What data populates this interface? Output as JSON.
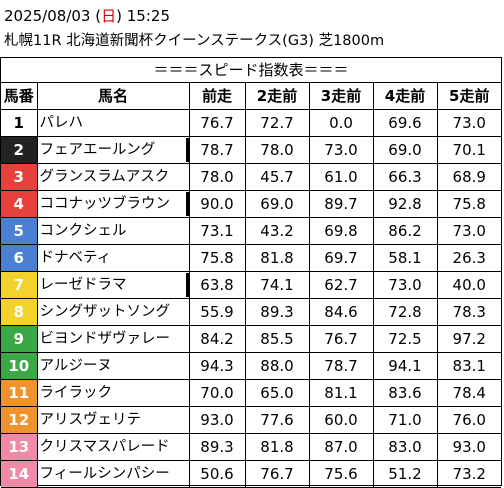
{
  "header": {
    "date": "2025/08/03",
    "weekday_open": "(",
    "weekday": "日",
    "weekday_close": ")",
    "time": "15:25",
    "race": "札幌11R 北海道新聞杯クイーンステークス(G3) 芝1800m"
  },
  "banner": "＝＝＝スピード指数表＝＝＝",
  "columns": [
    "馬番",
    "馬名",
    "前走",
    "2走前",
    "3走前",
    "4走前",
    "5走前"
  ],
  "horses": [
    {
      "no": "1",
      "name": "パレハ",
      "r1": "76.7",
      "r2": "72.7",
      "r3": "0.0",
      "r4": "69.6",
      "r5": "73.0",
      "bg": "#ffffff",
      "fg": "#000000",
      "mark": false
    },
    {
      "no": "2",
      "name": "フェアエールング",
      "r1": "78.7",
      "r2": "78.0",
      "r3": "73.0",
      "r4": "69.0",
      "r5": "70.1",
      "bg": "#222222",
      "fg": "#ffffff",
      "mark": true
    },
    {
      "no": "3",
      "name": "グランスラムアスク",
      "r1": "78.0",
      "r2": "45.7",
      "r3": "61.0",
      "r4": "66.3",
      "r5": "68.9",
      "bg": "#e8403b",
      "fg": "#ffffff",
      "mark": false
    },
    {
      "no": "4",
      "name": "ココナッツブラウン",
      "r1": "90.0",
      "r2": "69.0",
      "r3": "89.7",
      "r4": "92.8",
      "r5": "75.8",
      "bg": "#e8403b",
      "fg": "#ffffff",
      "mark": true
    },
    {
      "no": "5",
      "name": "コンクシェル",
      "r1": "73.1",
      "r2": "43.2",
      "r3": "69.8",
      "r4": "86.2",
      "r5": "73.0",
      "bg": "#4a7fd4",
      "fg": "#ffffff",
      "mark": false
    },
    {
      "no": "6",
      "name": "ドナベティ",
      "r1": "75.8",
      "r2": "81.8",
      "r3": "69.7",
      "r4": "58.1",
      "r5": "26.3",
      "bg": "#4a7fd4",
      "fg": "#ffffff",
      "mark": false
    },
    {
      "no": "7",
      "name": "レーゼドラマ",
      "r1": "63.8",
      "r2": "74.1",
      "r3": "62.7",
      "r4": "73.0",
      "r5": "40.0",
      "bg": "#f3d22b",
      "fg": "#ffffff",
      "mark": true
    },
    {
      "no": "8",
      "name": "シングザットソング",
      "r1": "55.9",
      "r2": "89.3",
      "r3": "84.6",
      "r4": "72.8",
      "r5": "78.3",
      "bg": "#f3d22b",
      "fg": "#ffffff",
      "mark": false
    },
    {
      "no": "9",
      "name": "ビヨンドザヴァレー",
      "r1": "84.2",
      "r2": "85.5",
      "r3": "76.7",
      "r4": "72.5",
      "r5": "97.2",
      "bg": "#3aa845",
      "fg": "#ffffff",
      "mark": false
    },
    {
      "no": "10",
      "name": "アルジーヌ",
      "r1": "94.3",
      "r2": "88.0",
      "r3": "78.7",
      "r4": "94.1",
      "r5": "83.1",
      "bg": "#3aa845",
      "fg": "#ffffff",
      "mark": false
    },
    {
      "no": "11",
      "name": "ライラック",
      "r1": "70.0",
      "r2": "65.0",
      "r3": "81.1",
      "r4": "83.6",
      "r5": "78.4",
      "bg": "#f0922e",
      "fg": "#ffffff",
      "mark": false
    },
    {
      "no": "12",
      "name": "アリスヴェリテ",
      "r1": "93.0",
      "r2": "77.6",
      "r3": "60.0",
      "r4": "71.0",
      "r5": "76.0",
      "bg": "#f0922e",
      "fg": "#ffffff",
      "mark": false
    },
    {
      "no": "13",
      "name": "クリスマスパレード",
      "r1": "89.3",
      "r2": "81.8",
      "r3": "87.0",
      "r4": "83.0",
      "r5": "93.0",
      "bg": "#f08aa8",
      "fg": "#ffffff",
      "mark": false
    },
    {
      "no": "14",
      "name": "フィールシンパシー",
      "r1": "50.6",
      "r2": "76.7",
      "r3": "75.6",
      "r4": "51.2",
      "r5": "73.2",
      "bg": "#f08aa8",
      "fg": "#ffffff",
      "mark": false
    }
  ]
}
